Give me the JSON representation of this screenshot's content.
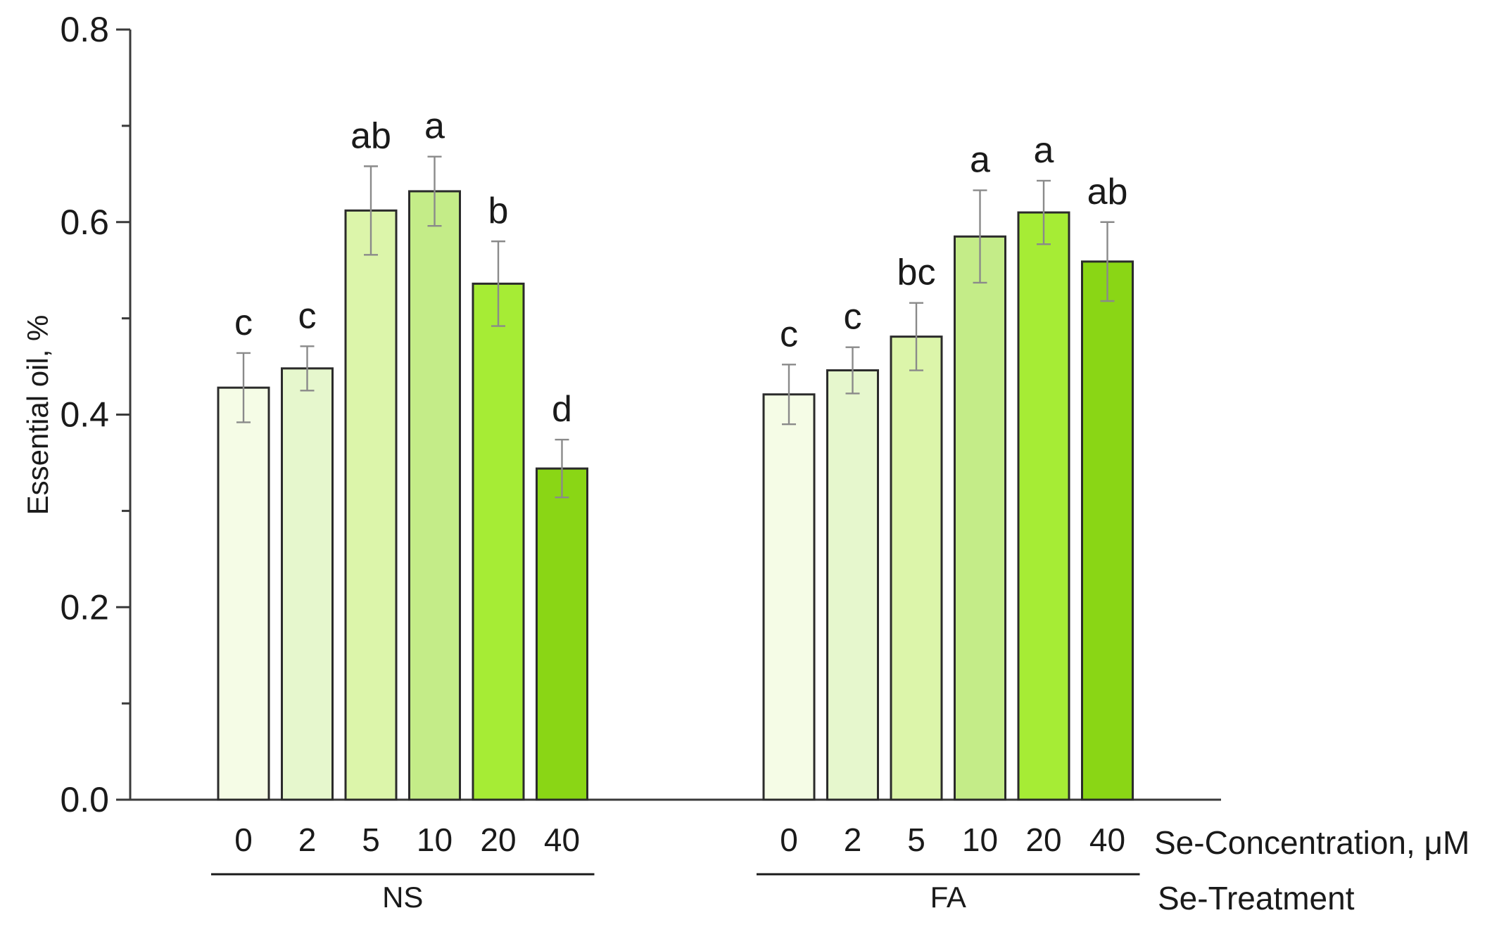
{
  "chart_data": {
    "type": "bar",
    "title": "",
    "ylabel": "Essential oil, %",
    "xlabel": "Se-Concentration, μM",
    "group_axis_label": "Se-Treatment",
    "ylim": [
      0,
      0.8
    ],
    "yticks": [
      "0.0",
      "0.2",
      "0.4",
      "0.6",
      "0.8"
    ],
    "grid": false,
    "legend": "none",
    "groups": [
      {
        "name": "NS",
        "categories": [
          "0",
          "2",
          "5",
          "10",
          "20",
          "40"
        ],
        "values": [
          0.428,
          0.448,
          0.612,
          0.632,
          0.536,
          0.344
        ],
        "errors": [
          0.036,
          0.023,
          0.046,
          0.036,
          0.044,
          0.03
        ],
        "letters": [
          "c",
          "c",
          "ab",
          "a",
          "b",
          "d"
        ]
      },
      {
        "name": "FA",
        "categories": [
          "0",
          "2",
          "5",
          "10",
          "20",
          "40"
        ],
        "values": [
          0.421,
          0.446,
          0.481,
          0.585,
          0.61,
          0.559
        ],
        "errors": [
          0.031,
          0.024,
          0.035,
          0.048,
          0.033,
          0.041
        ],
        "letters": [
          "c",
          "c",
          "bc",
          "a",
          "a",
          "ab"
        ]
      }
    ],
    "colors": [
      "#f5fce6",
      "#e6f7cd",
      "#dcf5aa",
      "#c4ec88",
      "#a6ec35",
      "#8ad615"
    ]
  }
}
